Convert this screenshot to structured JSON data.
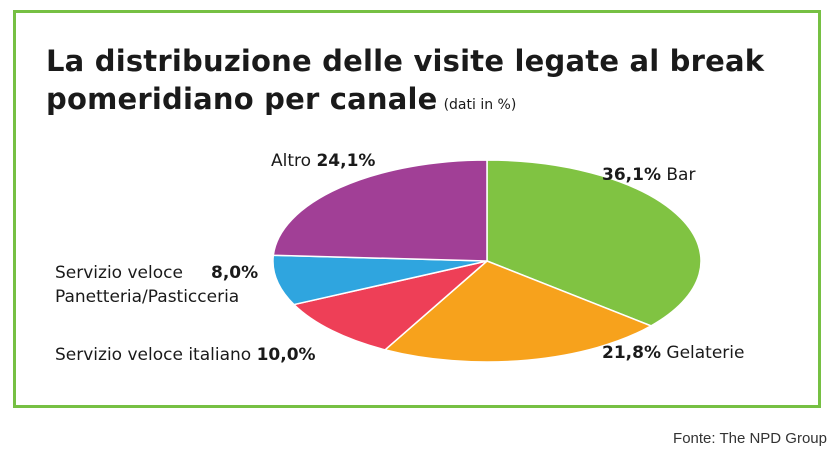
{
  "chart_data": {
    "type": "pie",
    "title_line1": "La distribuzione delle visite legate al break",
    "title_line2": "pomeridiano per canale",
    "subtitle": "(dati in %)",
    "slices": [
      {
        "label": "Bar",
        "value": 36.1,
        "value_text": "36,1%",
        "color": "#80c342"
      },
      {
        "label": "Gelaterie",
        "value": 21.8,
        "value_text": "21,8%",
        "color": "#f7a21c"
      },
      {
        "label": "Servizio veloce italiano",
        "value": 10.0,
        "value_text": "10,0%",
        "color": "#ee3f57"
      },
      {
        "label_line1": "Servizio veloce",
        "label_line2": "Panetteria/Pasticceria",
        "value": 8.0,
        "value_text": "8,0%",
        "color": "#2fa5df"
      },
      {
        "label": "Altro",
        "value": 24.1,
        "value_text": "24,1%",
        "color": "#a13f96"
      }
    ],
    "source": "Fonte: The NPD Group"
  }
}
